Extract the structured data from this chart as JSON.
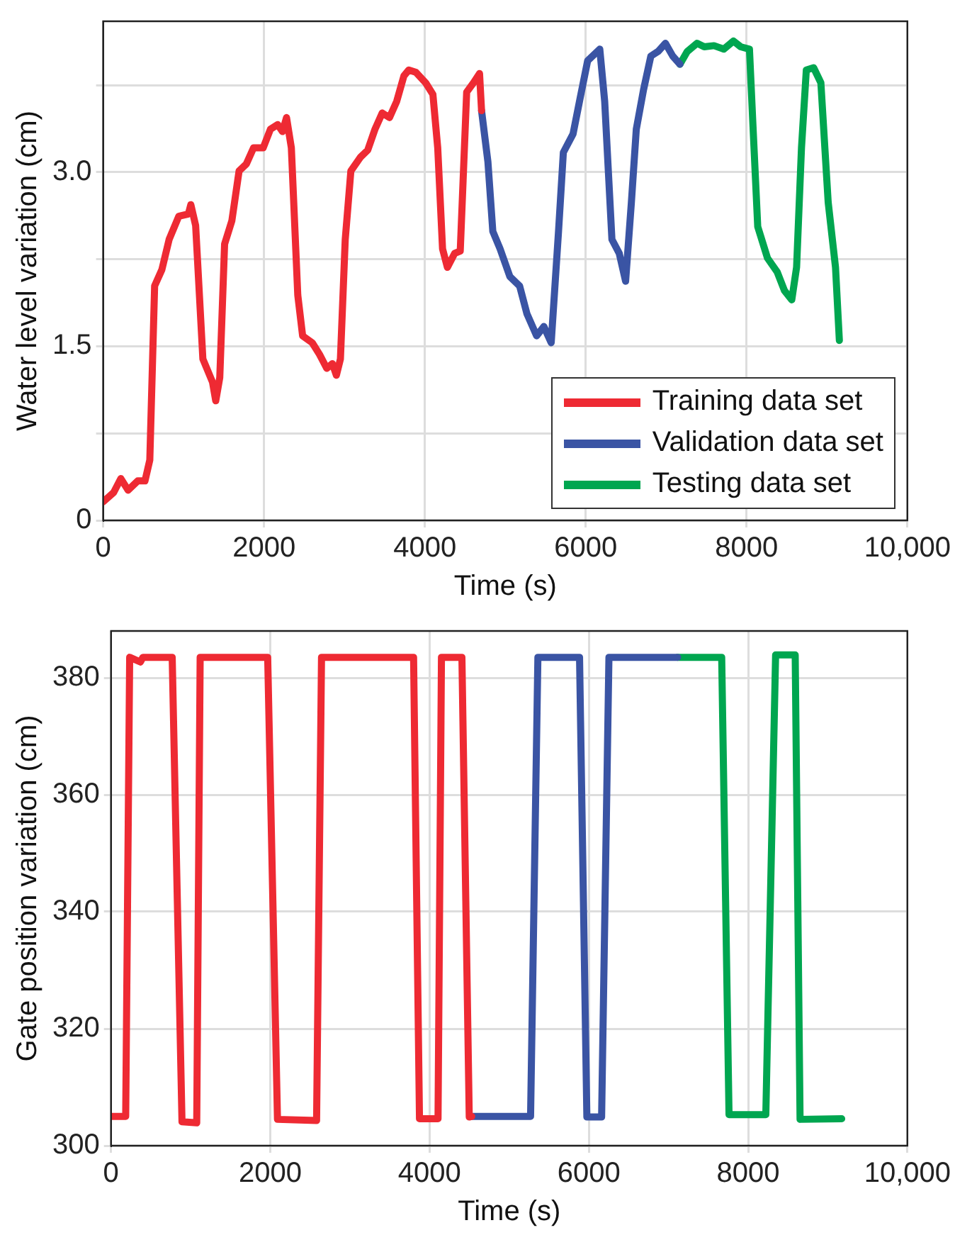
{
  "chart_data": [
    {
      "type": "line",
      "xlabel": "Time (s)",
      "ylabel": "Water level variation (cm)",
      "xlim": [
        0,
        10000
      ],
      "xticks": [
        0,
        2000,
        4000,
        6000,
        8000,
        {
          "value": 10000,
          "label": "10,000"
        }
      ],
      "ylim": [
        0,
        4.3
      ],
      "yticks": [
        0,
        {
          "value": 0.75,
          "label": null
        },
        1.5,
        {
          "value": 2.25,
          "label": null
        },
        {
          "value": 3,
          "label": "3.0"
        },
        {
          "value": 3.75,
          "label": null
        }
      ],
      "grid": true,
      "legend": "bottom right",
      "marker": "none",
      "line_style": "solid",
      "series": [
        {
          "name": "Training data set",
          "color": "#ee2a33",
          "x": [
            0,
            130,
            220,
            310,
            430,
            520,
            580,
            640,
            730,
            820,
            940,
            1060,
            1090,
            1150,
            1240,
            1360,
            1400,
            1450,
            1510,
            1600,
            1690,
            1780,
            1870,
            1990,
            2080,
            2170,
            2230,
            2280,
            2340,
            2420,
            2480,
            2600,
            2690,
            2780,
            2850,
            2900,
            2950,
            3010,
            3080,
            3200,
            3290,
            3380,
            3470,
            3560,
            3650,
            3740,
            3800,
            3890,
            4010,
            4100,
            4160,
            4220,
            4280,
            4370,
            4440,
            4520,
            4605,
            4680,
            4705
          ],
          "values": [
            0.16,
            0.24,
            0.36,
            0.26,
            0.34,
            0.34,
            0.52,
            2.02,
            2.16,
            2.42,
            2.62,
            2.64,
            2.72,
            2.54,
            1.39,
            1.19,
            1.03,
            1.23,
            2.38,
            2.58,
            3.01,
            3.07,
            3.21,
            3.21,
            3.37,
            3.41,
            3.35,
            3.47,
            3.21,
            1.94,
            1.59,
            1.53,
            1.43,
            1.31,
            1.35,
            1.25,
            1.39,
            2.42,
            3.01,
            3.13,
            3.19,
            3.37,
            3.51,
            3.47,
            3.61,
            3.83,
            3.88,
            3.86,
            3.77,
            3.67,
            3.21,
            2.34,
            2.18,
            2.3,
            2.32,
            3.69,
            3.77,
            3.85,
            3.53
          ]
        },
        {
          "name": "Validation data set",
          "color": "#3a54a4",
          "x": [
            4705,
            4784,
            4845,
            4935,
            5057,
            5178,
            5269,
            5390,
            5480,
            5571,
            5662,
            5722,
            5843,
            5934,
            6024,
            6175,
            6236,
            6326,
            6417,
            6496,
            6568,
            6629,
            6719,
            6810,
            6900,
            6991,
            7082,
            7172
          ],
          "values": [
            3.53,
            3.09,
            2.49,
            2.34,
            2.1,
            2.02,
            1.78,
            1.59,
            1.67,
            1.53,
            2.49,
            3.17,
            3.33,
            3.65,
            3.96,
            4.06,
            3.61,
            2.42,
            2.3,
            2.06,
            2.74,
            3.37,
            3.71,
            4.0,
            4.04,
            4.11,
            4.0,
            3.93
          ]
        },
        {
          "name": "Testing data set",
          "color": "#00a650",
          "x": [
            7172,
            7263,
            7384,
            7474,
            7595,
            7716,
            7837,
            7927,
            8036,
            8079,
            8139,
            8260,
            8381,
            8471,
            8562,
            8622,
            8683,
            8743,
            8834,
            8924,
            9015,
            9106,
            9154
          ],
          "values": [
            3.93,
            4.04,
            4.11,
            4.08,
            4.09,
            4.06,
            4.13,
            4.08,
            4.06,
            3.41,
            2.53,
            2.26,
            2.14,
            1.98,
            1.9,
            2.18,
            3.21,
            3.88,
            3.9,
            3.77,
            2.74,
            2.18,
            1.55
          ]
        }
      ]
    },
    {
      "type": "line",
      "xlabel": "Time (s)",
      "ylabel": "Gate position variation (cm)",
      "xlim": [
        0,
        10000
      ],
      "xticks": [
        0,
        2000,
        4000,
        6000,
        8000,
        {
          "value": 10000,
          "label": "10,000"
        }
      ],
      "ylim": [
        300,
        388
      ],
      "yticks": [
        300,
        320,
        340,
        360,
        380
      ],
      "grid": true,
      "marker": "none",
      "line_style": "solid",
      "series": [
        {
          "color": "#ee2a33",
          "x": [
            0,
            184,
            234,
            369,
            400,
            768,
            891,
            1076,
            1119,
            1967,
            2090,
            2581,
            2643,
            3799,
            3873,
            4106,
            4149,
            4406,
            4498,
            4529
          ],
          "values": [
            305,
            305,
            383.5,
            382.7,
            383.5,
            383.5,
            304.1,
            303.9,
            383.5,
            383.5,
            304.5,
            304.3,
            383.5,
            383.5,
            304.6,
            304.6,
            383.5,
            383.5,
            304.9,
            305
          ]
        },
        {
          "color": "#3a54a4",
          "x": [
            4529,
            5268,
            5360,
            5883,
            5975,
            6160,
            6252,
            7114
          ],
          "values": [
            305,
            305,
            383.5,
            383.5,
            304.9,
            304.9,
            383.5,
            383.5
          ]
        },
        {
          "color": "#00a650",
          "x": [
            7114,
            7668,
            7760,
            8222,
            8345,
            8591,
            8652,
            9175
          ],
          "values": [
            383.5,
            383.5,
            305.3,
            305.3,
            383.9,
            383.9,
            304.5,
            304.6
          ]
        }
      ]
    }
  ]
}
